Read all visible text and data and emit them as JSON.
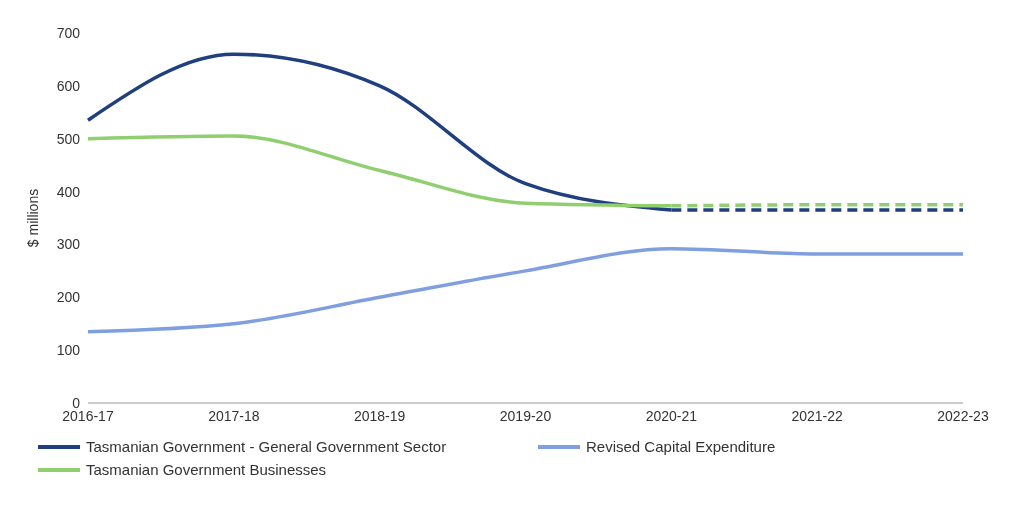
{
  "chart_data": {
    "type": "line",
    "ylabel": "$ millions",
    "categories": [
      "2016-17",
      "2017-18",
      "2018-19",
      "2019-20",
      "2020-21",
      "2021-22",
      "2022-23"
    ],
    "series": [
      {
        "name": "Tasmanian Government - General Government Sector",
        "color": "#1f3f7f",
        "values": [
          535,
          660,
          600,
          415,
          365,
          null,
          null
        ],
        "line_style": "solid"
      },
      {
        "color": "#1f3f7f",
        "values": [
          null,
          null,
          null,
          null,
          365,
          365,
          365
        ],
        "line_style": "dashed"
      },
      {
        "name": "Revised Capital Expenditure",
        "color": "#7f9fdf",
        "values": [
          135,
          150,
          200,
          250,
          292,
          282,
          282
        ],
        "line_style": "solid"
      },
      {
        "name": "Tasmanian Government Businesses",
        "color": "#8fcf6f",
        "values": [
          500,
          505,
          440,
          378,
          373,
          null,
          null
        ],
        "line_style": "solid"
      },
      {
        "color": "#8fcf6f",
        "values": [
          null,
          null,
          null,
          null,
          373,
          375,
          375
        ],
        "line_style": "dashed"
      }
    ],
    "ylim": [
      0,
      700
    ],
    "yticks": [
      0,
      100,
      200,
      300,
      400,
      500,
      600,
      700
    ],
    "grid": false,
    "legend": "bottom"
  }
}
